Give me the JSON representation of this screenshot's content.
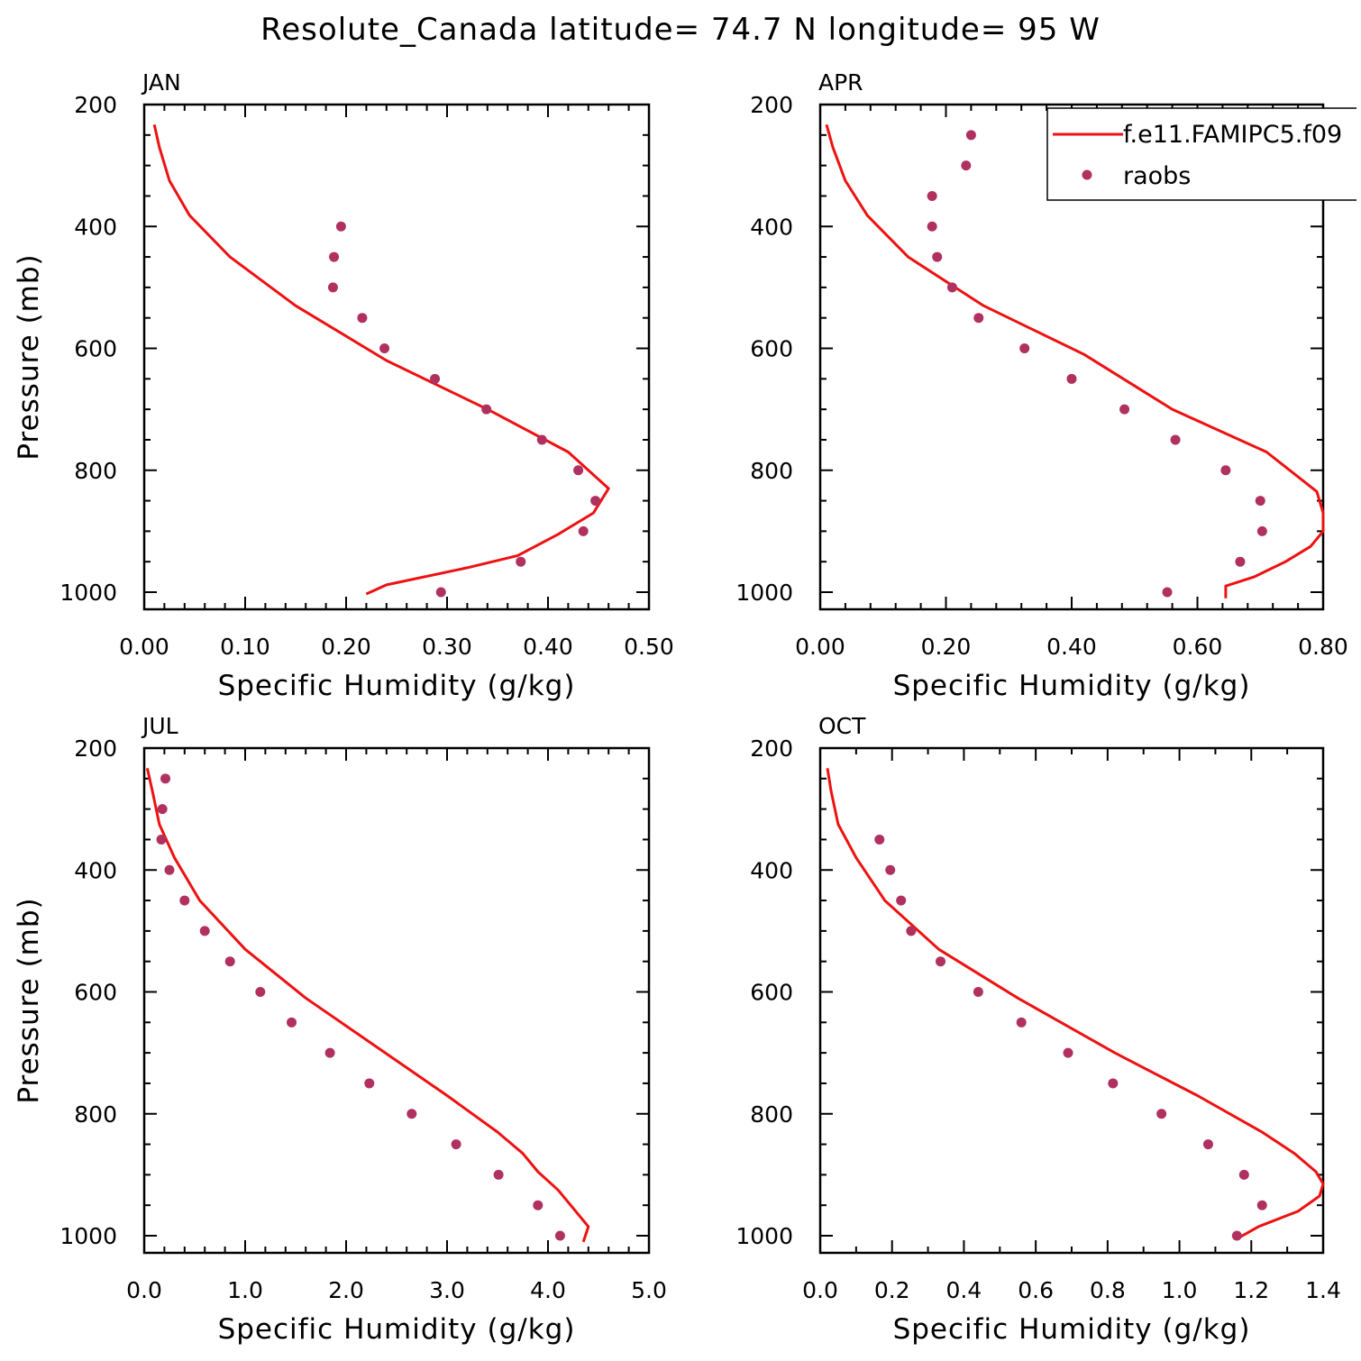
{
  "title": "Resolute_Canada  latitude= 74.7 N longitude= 95 W",
  "legend": {
    "model_label": "f.e11.FAMIPC5.f09",
    "obs_label": "raobs"
  },
  "colors": {
    "model": "#ee1111",
    "obs": "#b03060",
    "axes": "#000000"
  },
  "chart_data": [
    {
      "type": "line",
      "panel": "JAN",
      "xlabel": "Specific Humidity (g/kg)",
      "ylabel": "Pressure (mb)",
      "xlim": [
        0,
        0.5
      ],
      "ylim": [
        1000,
        200
      ],
      "xticks": [
        0,
        0.1,
        0.2,
        0.3,
        0.4,
        0.5
      ],
      "xtick_labels": [
        "0.00",
        "0.10",
        "0.20",
        "0.30",
        "0.40",
        "0.50"
      ],
      "yticks": [
        200,
        400,
        600,
        800,
        1000
      ],
      "ytick_labels": [
        "200",
        "400",
        "600",
        "800",
        "1000"
      ],
      "series": [
        {
          "name": "f.e11.FAMIPC5.f09",
          "style": "line",
          "x": [
            0.01,
            0.015,
            0.025,
            0.045,
            0.085,
            0.15,
            0.24,
            0.34,
            0.42,
            0.46,
            0.445,
            0.41,
            0.37,
            0.32,
            0.24,
            0.22
          ],
          "y": [
            233,
            270,
            325,
            382,
            450,
            530,
            620,
            700,
            770,
            830,
            870,
            905,
            940,
            960,
            988,
            1003
          ]
        },
        {
          "name": "raobs",
          "style": "scatter",
          "x": [
            0.195,
            0.188,
            0.187,
            0.216,
            0.238,
            0.288,
            0.339,
            0.394,
            0.43,
            0.447,
            0.435,
            0.373,
            0.294
          ],
          "y": [
            400,
            450,
            500,
            550,
            600,
            650,
            700,
            750,
            800,
            850,
            900,
            950,
            1000
          ]
        }
      ]
    },
    {
      "type": "line",
      "panel": "APR",
      "xlabel": "Specific Humidity (g/kg)",
      "ylabel": "",
      "xlim": [
        0,
        0.8
      ],
      "ylim": [
        1000,
        200
      ],
      "xticks": [
        0,
        0.2,
        0.4,
        0.6,
        0.8
      ],
      "xtick_labels": [
        "0.00",
        "0.20",
        "0.40",
        "0.60",
        "0.80"
      ],
      "yticks": [
        200,
        400,
        600,
        800,
        1000
      ],
      "ytick_labels": [
        "200",
        "400",
        "600",
        "800",
        "1000"
      ],
      "series": [
        {
          "name": "f.e11.FAMIPC5.f09",
          "style": "line",
          "x": [
            0.01,
            0.02,
            0.04,
            0.075,
            0.14,
            0.26,
            0.42,
            0.56,
            0.71,
            0.79,
            0.8,
            0.8,
            0.78,
            0.74,
            0.69,
            0.645,
            0.645
          ],
          "y": [
            233,
            270,
            325,
            382,
            450,
            530,
            610,
            700,
            770,
            835,
            870,
            900,
            925,
            950,
            975,
            990,
            1010
          ]
        },
        {
          "name": "raobs",
          "style": "scatter",
          "x": [
            0.24,
            0.232,
            0.178,
            0.178,
            0.186,
            0.21,
            0.252,
            0.325,
            0.4,
            0.484,
            0.565,
            0.645,
            0.7,
            0.703,
            0.668,
            0.552
          ],
          "y": [
            250,
            300,
            350,
            400,
            450,
            500,
            550,
            600,
            650,
            700,
            750,
            800,
            850,
            900,
            950,
            1000
          ]
        }
      ]
    },
    {
      "type": "line",
      "panel": "JUL",
      "xlabel": "Specific Humidity (g/kg)",
      "ylabel": "Pressure (mb)",
      "xlim": [
        0,
        5
      ],
      "ylim": [
        1000,
        200
      ],
      "xticks": [
        0,
        1,
        2,
        3,
        4,
        5
      ],
      "xtick_labels": [
        "0.0",
        "1.0",
        "2.0",
        "3.0",
        "4.0",
        "5.0"
      ],
      "yticks": [
        200,
        400,
        600,
        800,
        1000
      ],
      "ytick_labels": [
        "200",
        "400",
        "600",
        "800",
        "1000"
      ],
      "series": [
        {
          "name": "f.e11.FAMIPC5.f09",
          "style": "line",
          "x": [
            0.03,
            0.08,
            0.15,
            0.3,
            0.55,
            1.0,
            1.6,
            2.3,
            3.0,
            3.5,
            3.75,
            3.9,
            4.1,
            4.25,
            4.4,
            4.35
          ],
          "y": [
            233,
            270,
            325,
            380,
            450,
            530,
            610,
            690,
            770,
            830,
            865,
            895,
            925,
            955,
            985,
            1010
          ]
        },
        {
          "name": "raobs",
          "style": "scatter",
          "x": [
            0.21,
            0.18,
            0.17,
            0.25,
            0.4,
            0.6,
            0.85,
            1.15,
            1.46,
            1.84,
            2.23,
            2.65,
            3.09,
            3.51,
            3.9,
            4.12
          ],
          "y": [
            250,
            300,
            350,
            400,
            450,
            500,
            550,
            600,
            650,
            700,
            750,
            800,
            850,
            900,
            950,
            1000
          ]
        }
      ]
    },
    {
      "type": "line",
      "panel": "OCT",
      "xlabel": "Specific Humidity (g/kg)",
      "ylabel": "",
      "xlim": [
        0,
        1.4
      ],
      "ylim": [
        1000,
        200
      ],
      "xticks": [
        0,
        0.2,
        0.4,
        0.6,
        0.8,
        1.0,
        1.2,
        1.4
      ],
      "xtick_labels": [
        "0.0",
        "0.2",
        "0.4",
        "0.6",
        "0.8",
        "1.0",
        "1.2",
        "1.4"
      ],
      "yticks": [
        200,
        400,
        600,
        800,
        1000
      ],
      "ytick_labels": [
        "200",
        "400",
        "600",
        "800",
        "1000"
      ],
      "series": [
        {
          "name": "f.e11.FAMIPC5.f09",
          "style": "line",
          "x": [
            0.02,
            0.03,
            0.05,
            0.1,
            0.18,
            0.33,
            0.55,
            0.82,
            1.05,
            1.23,
            1.32,
            1.38,
            1.4,
            1.39,
            1.33,
            1.22,
            1.16
          ],
          "y": [
            233,
            270,
            325,
            380,
            450,
            530,
            610,
            700,
            770,
            830,
            865,
            895,
            915,
            935,
            960,
            985,
            1005
          ]
        },
        {
          "name": "raobs",
          "style": "scatter",
          "x": [
            0.165,
            0.195,
            0.225,
            0.253,
            0.335,
            0.44,
            0.56,
            0.69,
            0.815,
            0.95,
            1.08,
            1.18,
            1.23,
            1.16
          ],
          "y": [
            350,
            400,
            450,
            500,
            550,
            600,
            650,
            700,
            750,
            800,
            850,
            900,
            950,
            1000
          ]
        }
      ]
    }
  ]
}
